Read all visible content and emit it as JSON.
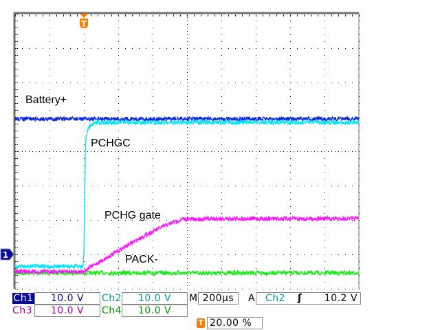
{
  "chart_data": {
    "type": "line",
    "title": "",
    "xlabel": "",
    "ylabel": "",
    "x_unit": "µs",
    "y_unit": "V",
    "xlim": [
      -400,
      1600
    ],
    "ylim": [
      -10,
      70
    ],
    "grid": true,
    "x_divisions": 10,
    "y_divisions": 8,
    "trigger_position_percent": 20,
    "series": [
      {
        "channel": "Ch1",
        "color": "#0a28e6",
        "x": [
          -400,
          1600
        ],
        "y": [
          39.4,
          39.4
        ]
      },
      {
        "channel": "Ch2",
        "color": "#00e5f5",
        "x": [
          -400,
          -5,
          0,
          10,
          20,
          40,
          80,
          200,
          1600
        ],
        "y": [
          -3.5,
          -3.5,
          0,
          33,
          36,
          37.5,
          38.4,
          38.4,
          38.4
        ]
      },
      {
        "channel": "Ch3",
        "color": "#ff10ff",
        "x": [
          -400,
          -10,
          0,
          112,
          232,
          352,
          472,
          572,
          800,
          1600
        ],
        "y": [
          -5,
          -5,
          -4.8,
          -1.6,
          2,
          5.4,
          8.4,
          10.2,
          10.4,
          10.4
        ]
      },
      {
        "channel": "Ch4",
        "color": "#18e818",
        "x": [
          -400,
          1600
        ],
        "y": [
          -5.4,
          -5.4
        ]
      }
    ],
    "annotations": [
      {
        "text": "Battery+"
      },
      {
        "text": "PCHGC"
      },
      {
        "text": "PCHG gate"
      },
      {
        "text": "PACK-"
      }
    ]
  },
  "ground_marker": "1",
  "trigger_marker": "T",
  "status": {
    "ch1": {
      "label": "Ch1",
      "scale": "10.0 V",
      "color": "#0a0a96"
    },
    "ch2": {
      "label": "Ch2",
      "scale": "10.0 V",
      "color": "#009aa0"
    },
    "ch3": {
      "label": "Ch3",
      "scale": "10.0 V",
      "color": "#a000a0"
    },
    "ch4": {
      "label": "Ch4",
      "scale": "10.0 V",
      "color": "#009600"
    },
    "timebase_label": "M",
    "timebase": "200µs",
    "trigger_label": "A",
    "trigger_source": "Ch2",
    "trigger_slope_icon": "rising-edge-icon",
    "trigger_slope": "ʃ",
    "trigger_level": "10.2 V",
    "trigger_position": "20.00 %"
  }
}
